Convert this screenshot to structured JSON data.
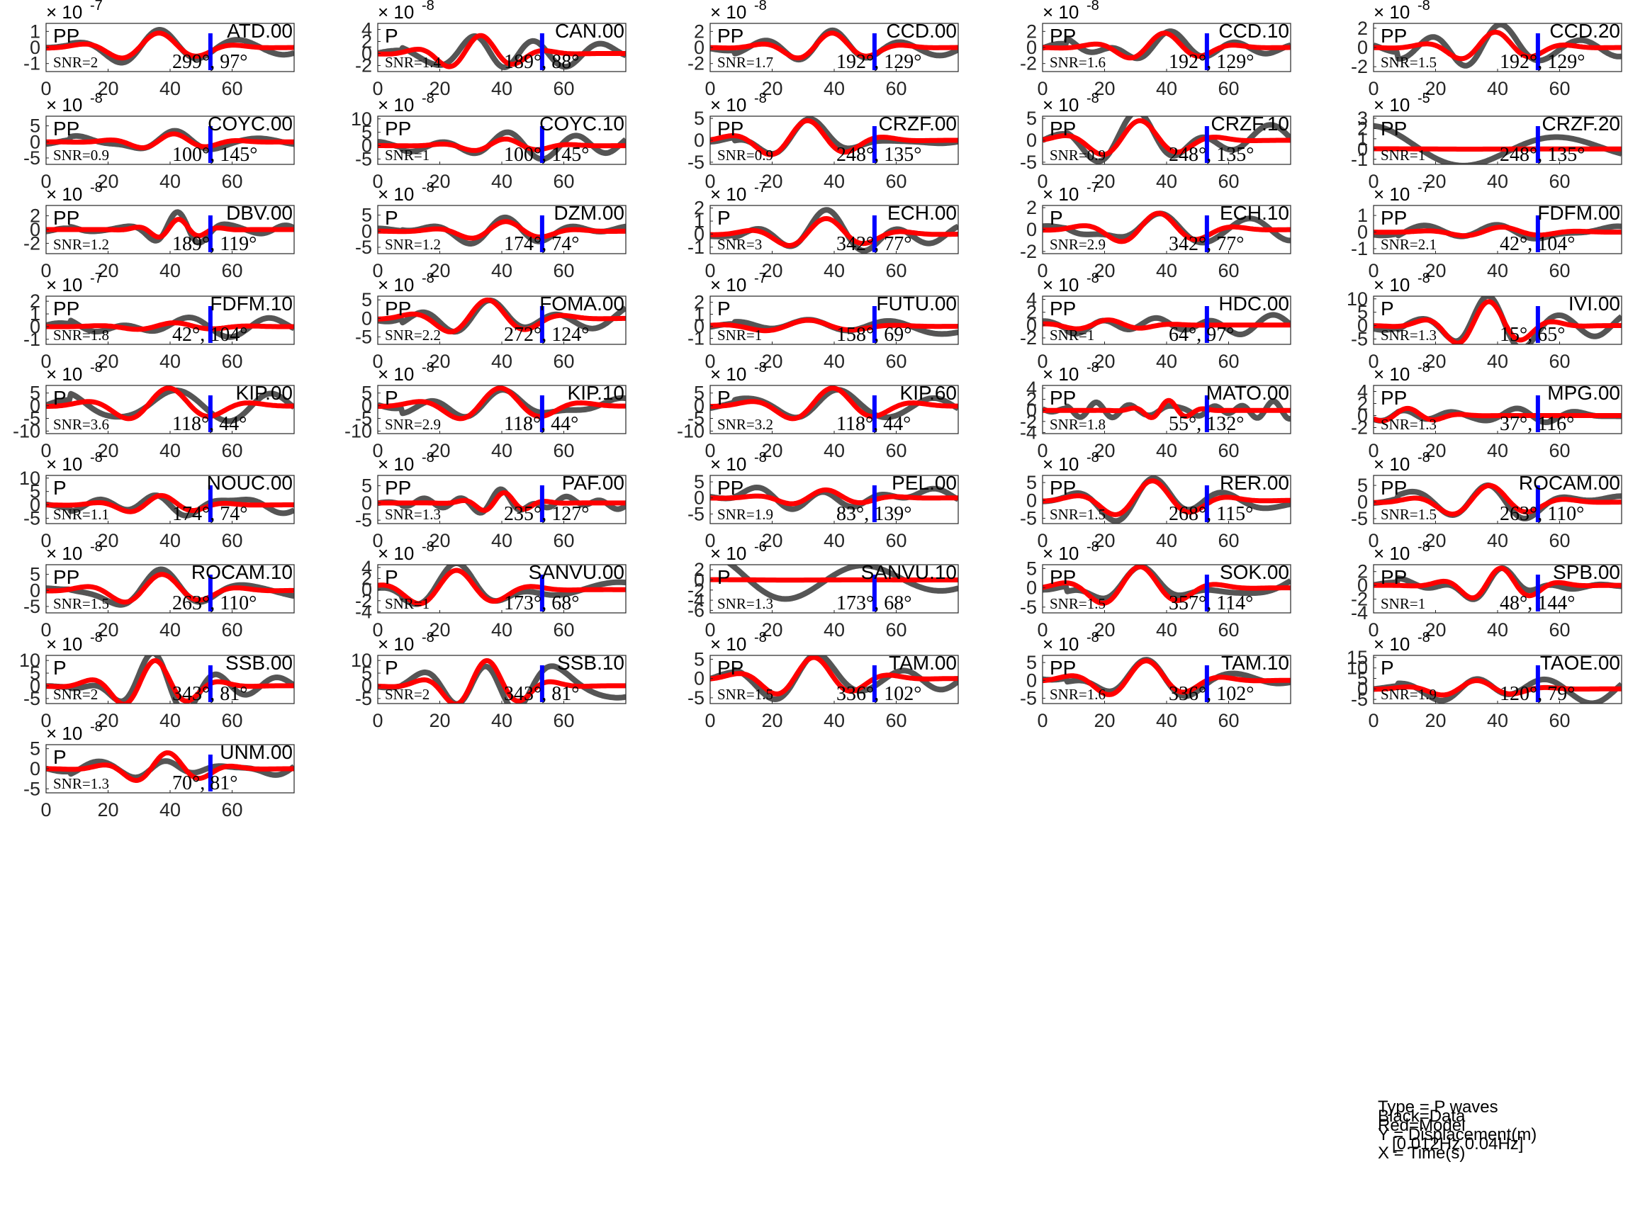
{
  "chart_data": {
    "type": "line",
    "series_names": [
      "Data",
      "Model"
    ],
    "series_colors": {
      "data": "#555555",
      "model": "#ff0000",
      "marker": "#0000ff"
    },
    "xticks": [
      0,
      20,
      40,
      60
    ],
    "xlim": [
      0,
      80
    ],
    "marker_time": 53,
    "legend": {
      "type": "Type = P waves",
      "black": "Black=Data",
      "red": "Red=Model",
      "y": "Y = Displacement(m)",
      "band": "   [0.012Hz 0.04Hz]",
      "x": "X = Time(s)"
    },
    "panels": [
      {
        "station": "ATD.00",
        "phase": "PP",
        "snr": "SNR=2",
        "azimuth": "299°, 97°",
        "exponent": "-7",
        "yticks": [
          "1",
          "0",
          "-1"
        ],
        "ylim": [
          -1.5,
          1.5
        ],
        "amp": 0.9,
        "dataAmp": 1.3,
        "period": 26,
        "t0": 35
      },
      {
        "station": "CAN.00",
        "phase": "P",
        "snr": "SNR=1.4",
        "azimuth": "189°, 88°",
        "exponent": "-8",
        "yticks": [
          "4",
          "2",
          "0",
          "-2"
        ],
        "ylim": [
          -3,
          5
        ],
        "amp": 3.0,
        "dataAmp": 4.5,
        "period": 22,
        "t0": 32
      },
      {
        "station": "CCD.00",
        "phase": "PP",
        "snr": "SNR=1.7",
        "azimuth": "192°, 129°",
        "exponent": "-8",
        "yticks": [
          "2",
          "0",
          "-2"
        ],
        "ylim": [
          -3,
          3
        ],
        "amp": 1.8,
        "dataAmp": 2.5,
        "period": 24,
        "t0": 38
      },
      {
        "station": "CCD.10",
        "phase": "PP",
        "snr": "SNR=1.6",
        "azimuth": "192°, 129°",
        "exponent": "-8",
        "yticks": [
          "2",
          "0",
          "-2"
        ],
        "ylim": [
          -3,
          3
        ],
        "amp": 1.8,
        "dataAmp": 2.5,
        "period": 24,
        "t0": 38
      },
      {
        "station": "CCD.20",
        "phase": "PP",
        "snr": "SNR=1.5",
        "azimuth": "192°, 129°",
        "exponent": "-8",
        "yticks": [
          "2",
          "0",
          "-2"
        ],
        "ylim": [
          -2.5,
          2.5
        ],
        "amp": 1.6,
        "dataAmp": 2.2,
        "period": 24,
        "t0": 38
      },
      {
        "station": "COYC.00",
        "phase": "PP",
        "snr": "SNR=0.9",
        "azimuth": "100°, 145°",
        "exponent": "-8",
        "yticks": [
          "5",
          "0",
          "-5"
        ],
        "ylim": [
          -7,
          8
        ],
        "amp": 2.5,
        "dataAmp": 6.0,
        "period": 22,
        "t0": 40
      },
      {
        "station": "COYC.10",
        "phase": "PP",
        "snr": "SNR=1",
        "azimuth": "100°, 145°",
        "exponent": "-8",
        "yticks": [
          "10",
          "5",
          "0",
          "-5"
        ],
        "ylim": [
          -7,
          11
        ],
        "amp": 2.5,
        "dataAmp": 7.0,
        "period": 22,
        "t0": 40
      },
      {
        "station": "CRZF.00",
        "phase": "PP",
        "snr": "SNR=0.9",
        "azimuth": "248°, 135°",
        "exponent": "-8",
        "yticks": [
          "5",
          "0",
          "-5"
        ],
        "ylim": [
          -5.5,
          5.5
        ],
        "amp": 4.5,
        "dataAmp": 5.0,
        "period": 26,
        "t0": 30
      },
      {
        "station": "CRZF.10",
        "phase": "PP",
        "snr": "SNR=0.9",
        "azimuth": "248°, 135°",
        "exponent": "-8",
        "yticks": [
          "5",
          "0",
          "-5"
        ],
        "ylim": [
          -5.5,
          5.5
        ],
        "amp": 4.5,
        "dataAmp": 5.0,
        "period": 26,
        "t0": 30
      },
      {
        "station": "CRZF.20",
        "phase": "PP",
        "snr": "SNR=1",
        "azimuth": "248°, 135°",
        "exponent": "-5",
        "yticks": [
          "3",
          "2",
          "1",
          "0",
          "-1"
        ],
        "ylim": [
          -1.5,
          3.2
        ],
        "amp": 0.02,
        "dataAmp": 2.5,
        "period": 60,
        "t0": 0
      },
      {
        "station": "DBV.00",
        "phase": "PP",
        "snr": "SNR=1.2",
        "azimuth": "189°, 119°",
        "exponent": "-8",
        "yticks": [
          "2",
          "0",
          "-2"
        ],
        "ylim": [
          -3.5,
          3.5
        ],
        "amp": 1.5,
        "dataAmp": 3.0,
        "period": 14,
        "t0": 42
      },
      {
        "station": "DZM.00",
        "phase": "P",
        "snr": "SNR=1.2",
        "azimuth": "174°, 74°",
        "exponent": "-8",
        "yticks": [
          "5",
          "0",
          "-5"
        ],
        "ylim": [
          -7,
          8
        ],
        "amp": 3.0,
        "dataAmp": 6.0,
        "period": 24,
        "t0": 40
      },
      {
        "station": "ECH.00",
        "phase": "P",
        "snr": "SNR=3",
        "azimuth": "342°, 77°",
        "exponent": "-7",
        "yticks": [
          "2",
          "1",
          "0",
          "-1"
        ],
        "ylim": [
          -1.5,
          2.2
        ],
        "amp": 1.2,
        "dataAmp": 1.6,
        "period": 26,
        "t0": 36
      },
      {
        "station": "ECH.10",
        "phase": "P",
        "snr": "SNR=2.9",
        "azimuth": "342°, 77°",
        "exponent": "-7",
        "yticks": [
          "2",
          "0",
          "-2"
        ],
        "ylim": [
          -2.2,
          2.2
        ],
        "amp": 1.5,
        "dataAmp": 2.0,
        "period": 26,
        "t0": 36
      },
      {
        "station": "FDFM.00",
        "phase": "PP",
        "snr": "SNR=2.1",
        "azimuth": "42°, 104°",
        "exponent": "-7",
        "yticks": [
          "1",
          "0",
          "-1"
        ],
        "ylim": [
          -1.3,
          1.6
        ],
        "amp": 0.3,
        "dataAmp": 1.3,
        "period": 26,
        "t0": 40
      },
      {
        "station": "FDFM.10",
        "phase": "PP",
        "snr": "SNR=1.8",
        "azimuth": "42°, 104°",
        "exponent": "-7",
        "yticks": [
          "2",
          "1",
          "0",
          "-1"
        ],
        "ylim": [
          -1.4,
          2.4
        ],
        "amp": 0.3,
        "dataAmp": 1.8,
        "period": 26,
        "t0": 40
      },
      {
        "station": "FOMA.00",
        "phase": "PP",
        "snr": "SNR=2.2",
        "azimuth": "272°, 124°",
        "exponent": "-8",
        "yticks": [
          "5",
          "0",
          "-5"
        ],
        "ylim": [
          -7,
          6
        ],
        "amp": 5.0,
        "dataAmp": 5.5,
        "period": 26,
        "t0": 34
      },
      {
        "station": "FUTU.00",
        "phase": "P",
        "snr": "SNR=1",
        "azimuth": "158°, 69°",
        "exponent": "-7",
        "yticks": [
          "2",
          "1",
          "0",
          "-1"
        ],
        "ylim": [
          -1.5,
          2.5
        ],
        "amp": 0.5,
        "dataAmp": 2.0,
        "period": 30,
        "t0": 30
      },
      {
        "station": "HDC.00",
        "phase": "PP",
        "snr": "SNR=1",
        "azimuth": "64°, 97°",
        "exponent": "-8",
        "yticks": [
          "4",
          "2",
          "0",
          "-2"
        ],
        "ylim": [
          -3,
          4.5
        ],
        "amp": 0.8,
        "dataAmp": 3.0,
        "period": 22,
        "t0": 20
      },
      {
        "station": "IVI.00",
        "phase": "P",
        "snr": "SNR=1.3",
        "azimuth": "15°, 65°",
        "exponent": "-8",
        "yticks": [
          "10",
          "5",
          "0",
          "-5"
        ],
        "ylim": [
          -7,
          11
        ],
        "amp": 9.0,
        "dataAmp": 9.5,
        "period": 22,
        "t0": 36
      },
      {
        "station": "KIP.00",
        "phase": "P",
        "snr": "SNR=3.6",
        "azimuth": "118°, 44°",
        "exponent": "-8",
        "yticks": [
          "5",
          "0",
          "-5",
          "-10"
        ],
        "ylim": [
          -11,
          8
        ],
        "amp": 7.0,
        "dataAmp": 8.0,
        "period": 28,
        "t0": 38
      },
      {
        "station": "KIP.10",
        "phase": "P",
        "snr": "SNR=2.9",
        "azimuth": "118°, 44°",
        "exponent": "-8",
        "yticks": [
          "5",
          "0",
          "-5",
          "-10"
        ],
        "ylim": [
          -11,
          8
        ],
        "amp": 7.0,
        "dataAmp": 8.0,
        "period": 28,
        "t0": 38
      },
      {
        "station": "KIP.60",
        "phase": "P",
        "snr": "SNR=3.2",
        "azimuth": "118°, 44°",
        "exponent": "-8",
        "yticks": [
          "5",
          "0",
          "-5",
          "-10"
        ],
        "ylim": [
          -11,
          8
        ],
        "amp": 7.0,
        "dataAmp": 8.0,
        "period": 28,
        "t0": 38
      },
      {
        "station": "MATO.00",
        "phase": "PP",
        "snr": "SNR=1.8",
        "azimuth": "55°, 132°",
        "exponent": "-8",
        "yticks": [
          "4",
          "2",
          "0",
          "-2",
          "-4"
        ],
        "ylim": [
          -4.2,
          4.5
        ],
        "amp": 1.8,
        "dataAmp": 3.0,
        "period": 12,
        "t0": 40
      },
      {
        "station": "MPG.00",
        "phase": "PP",
        "snr": "SNR=1.3",
        "azimuth": "37°, 116°",
        "exponent": "-8",
        "yticks": [
          "4",
          "2",
          "0",
          "-2"
        ],
        "ylim": [
          -3,
          5
        ],
        "amp": 1.2,
        "dataAmp": 3.5,
        "period": 18,
        "t0": 10
      },
      {
        "station": "NOUC.00",
        "phase": "P",
        "snr": "SNR=1.1",
        "azimuth": "174°, 74°",
        "exponent": "-8",
        "yticks": [
          "10",
          "5",
          "0",
          "-5"
        ],
        "ylim": [
          -7,
          11
        ],
        "amp": 3.5,
        "dataAmp": 6.0,
        "period": 22,
        "t0": 36
      },
      {
        "station": "PAF.00",
        "phase": "PP",
        "snr": "SNR=1.3",
        "azimuth": "235°, 127°",
        "exponent": "-8",
        "yticks": [
          "5",
          "0",
          "-5"
        ],
        "ylim": [
          -6,
          8
        ],
        "amp": 3.0,
        "dataAmp": 5.5,
        "period": 14,
        "t0": 40
      },
      {
        "station": "PEL.00",
        "phase": "PP",
        "snr": "SNR=1.9",
        "azimuth": "83°, 139°",
        "exponent": "-8",
        "yticks": [
          "5",
          "0",
          "-5"
        ],
        "ylim": [
          -8,
          7
        ],
        "amp": 2.5,
        "dataAmp": 5.5,
        "period": 24,
        "t0": 36
      },
      {
        "station": "RER.00",
        "phase": "PP",
        "snr": "SNR=1.5",
        "azimuth": "268°, 115°",
        "exponent": "-8",
        "yticks": [
          "5",
          "0",
          "-5"
        ],
        "ylim": [
          -6.5,
          7
        ],
        "amp": 5.5,
        "dataAmp": 6.0,
        "period": 26,
        "t0": 34
      },
      {
        "station": "ROCAM.00",
        "phase": "PP",
        "snr": "SNR=1.5",
        "azimuth": "263°, 110°",
        "exponent": "-8",
        "yticks": [
          "5",
          "0",
          "-5"
        ],
        "ylim": [
          -6.5,
          8
        ],
        "amp": 5.0,
        "dataAmp": 5.5,
        "period": 26,
        "t0": 36
      },
      {
        "station": "ROCAM.10",
        "phase": "PP",
        "snr": "SNR=1.5",
        "azimuth": "263°, 110°",
        "exponent": "-8",
        "yticks": [
          "5",
          "0",
          "-5"
        ],
        "ylim": [
          -7,
          8
        ],
        "amp": 5.0,
        "dataAmp": 5.5,
        "period": 26,
        "t0": 36
      },
      {
        "station": "SANVU.00",
        "phase": "P",
        "snr": "SNR=1",
        "azimuth": "173°, 68°",
        "exponent": "-8",
        "yticks": [
          "4",
          "2",
          "0",
          "-2",
          "-4"
        ],
        "ylim": [
          -4.2,
          4.5
        ],
        "amp": 3.5,
        "dataAmp": 3.8,
        "period": 26,
        "t0": 24
      },
      {
        "station": "SANVU.10",
        "phase": "P",
        "snr": "SNR=1.3",
        "azimuth": "173°, 68°",
        "exponent": "-6",
        "yticks": [
          "2",
          "0",
          "-2",
          "-4",
          "-6"
        ],
        "ylim": [
          -6.5,
          3
        ],
        "amp": 0.05,
        "dataAmp": 5.5,
        "period": 50,
        "t0": 0
      },
      {
        "station": "SOK.00",
        "phase": "PP",
        "snr": "SNR=1.5",
        "azimuth": "357°, 114°",
        "exponent": "-8",
        "yticks": [
          "5",
          "0",
          "-5"
        ],
        "ylim": [
          -6.5,
          6
        ],
        "amp": 5.5,
        "dataAmp": 6.0,
        "period": 26,
        "t0": 30
      },
      {
        "station": "SPB.00",
        "phase": "PP",
        "snr": "SNR=1",
        "azimuth": "48°, 144°",
        "exponent": "-8",
        "yticks": [
          "2",
          "0",
          "-2",
          "-4"
        ],
        "ylim": [
          -4,
          3
        ],
        "amp": 2.5,
        "dataAmp": 2.8,
        "period": 20,
        "t0": 40
      },
      {
        "station": "SSB.00",
        "phase": "P",
        "snr": "SNR=2",
        "azimuth": "343°, 81°",
        "exponent": "-8",
        "yticks": [
          "10",
          "5",
          "0",
          "-5"
        ],
        "ylim": [
          -7,
          12
        ],
        "amp": 10.0,
        "dataAmp": 10.5,
        "period": 22,
        "t0": 34
      },
      {
        "station": "SSB.10",
        "phase": "P",
        "snr": "SNR=2",
        "azimuth": "343°, 81°",
        "exponent": "-8",
        "yticks": [
          "10",
          "5",
          "0",
          "-5"
        ],
        "ylim": [
          -7,
          12
        ],
        "amp": 10.0,
        "dataAmp": 10.5,
        "period": 22,
        "t0": 34
      },
      {
        "station": "TAM.00",
        "phase": "PP",
        "snr": "SNR=1.5",
        "azimuth": "336°, 102°",
        "exponent": "-8",
        "yticks": [
          "5",
          "0",
          "-5"
        ],
        "ylim": [
          -6.5,
          6
        ],
        "amp": 5.5,
        "dataAmp": 6.0,
        "period": 26,
        "t0": 32
      },
      {
        "station": "TAM.10",
        "phase": "PP",
        "snr": "SNR=1.6",
        "azimuth": "336°, 102°",
        "exponent": "-8",
        "yticks": [
          "5",
          "0",
          "-5"
        ],
        "ylim": [
          -6.5,
          7
        ],
        "amp": 5.5,
        "dataAmp": 6.0,
        "period": 26,
        "t0": 32
      },
      {
        "station": "TAOE.00",
        "phase": "P",
        "snr": "SNR=1.9",
        "azimuth": "120°, 79°",
        "exponent": "-8",
        "yticks": [
          "15",
          "10",
          "5",
          "0",
          "-5"
        ],
        "ylim": [
          -7,
          16
        ],
        "amp": 4.0,
        "dataAmp": 12.0,
        "period": 24,
        "t0": 32
      },
      {
        "station": "UNM.00",
        "phase": "P",
        "snr": "SNR=1.3",
        "azimuth": "70°, 81°",
        "exponent": "-8",
        "yticks": [
          "5",
          "0",
          "-5"
        ],
        "ylim": [
          -6,
          6
        ],
        "amp": 4.0,
        "dataAmp": 5.0,
        "period": 22,
        "t0": 38
      }
    ]
  }
}
